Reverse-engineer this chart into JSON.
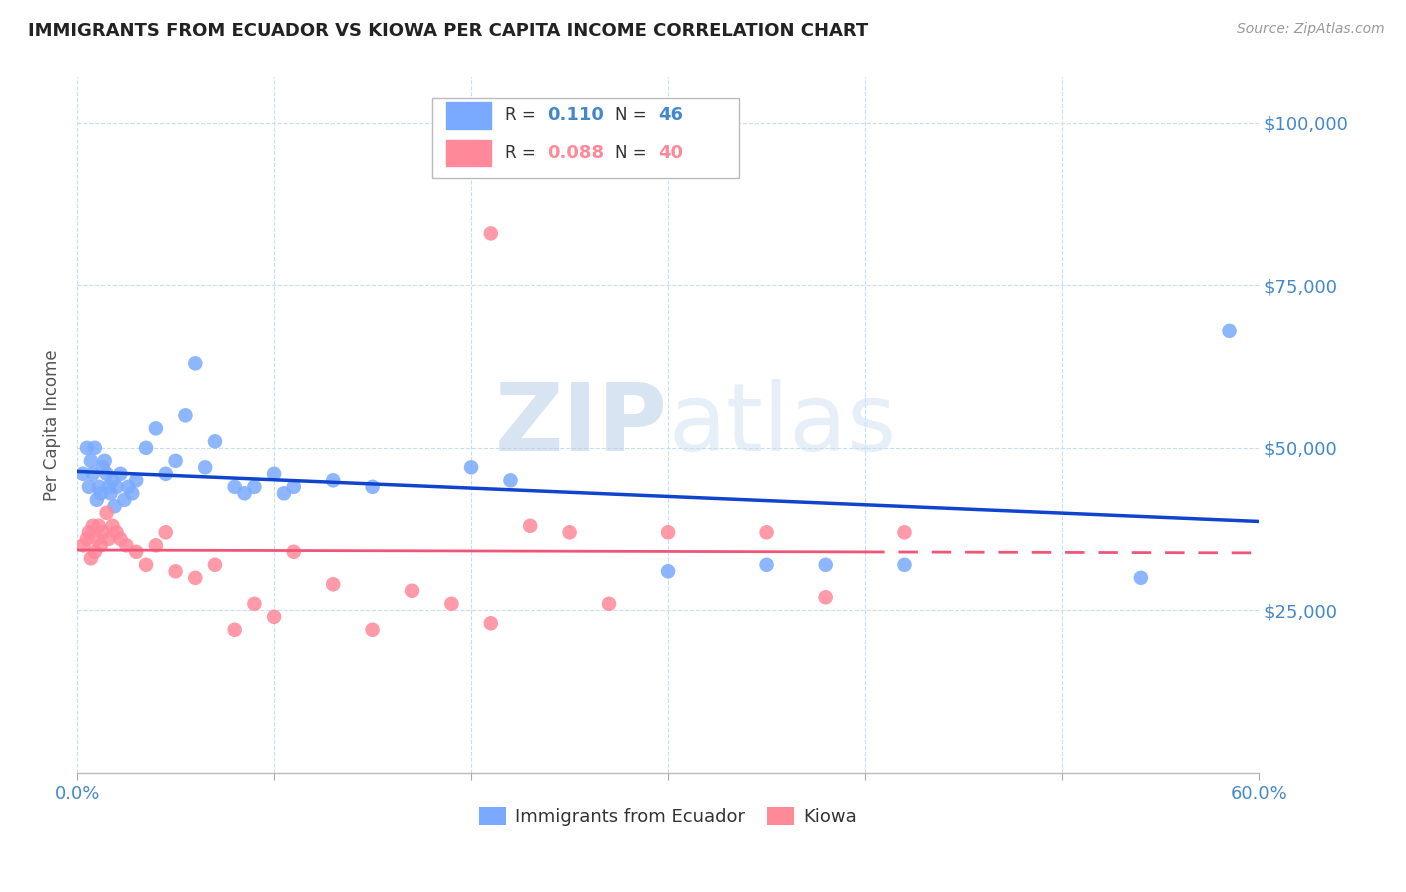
{
  "title": "IMMIGRANTS FROM ECUADOR VS KIOWA PER CAPITA INCOME CORRELATION CHART",
  "source_text": "Source: ZipAtlas.com",
  "ylabel": "Per Capita Income",
  "watermark_zip": "ZIP",
  "watermark_atlas": "atlas",
  "xlim": [
    0.0,
    0.6
  ],
  "ylim": [
    0,
    107000
  ],
  "yticks": [
    0,
    25000,
    50000,
    75000,
    100000
  ],
  "ytick_labels": [
    "",
    "$25,000",
    "$50,000",
    "$75,000",
    "$100,000"
  ],
  "xticks": [
    0.0,
    0.1,
    0.2,
    0.3,
    0.4,
    0.5,
    0.6
  ],
  "xtick_labels": [
    "0.0%",
    "",
    "",
    "",
    "",
    "",
    "60.0%"
  ],
  "blue_R": 0.11,
  "blue_N": 46,
  "pink_R": 0.088,
  "pink_N": 40,
  "legend_label_blue": "Immigrants from Ecuador",
  "legend_label_pink": "Kiowa",
  "blue_color": "#7aaaff",
  "pink_color": "#ff8899",
  "trend_blue": "#1144cc",
  "trend_pink": "#ee5577",
  "axis_label_color": "#4488cc",
  "background_color": "#ffffff",
  "blue_x": [
    0.003,
    0.005,
    0.006,
    0.007,
    0.008,
    0.009,
    0.01,
    0.011,
    0.012,
    0.013,
    0.014,
    0.015,
    0.016,
    0.017,
    0.018,
    0.019,
    0.02,
    0.022,
    0.024,
    0.026,
    0.028,
    0.03,
    0.035,
    0.04,
    0.045,
    0.05,
    0.055,
    0.06,
    0.065,
    0.07,
    0.08,
    0.085,
    0.09,
    0.1,
    0.105,
    0.11,
    0.13,
    0.15,
    0.2,
    0.22,
    0.3,
    0.35,
    0.38,
    0.42,
    0.54,
    0.585
  ],
  "blue_y": [
    46000,
    50000,
    44000,
    48000,
    46000,
    50000,
    42000,
    44000,
    43000,
    47000,
    48000,
    46000,
    44000,
    43000,
    45000,
    41000,
    44000,
    46000,
    42000,
    44000,
    43000,
    45000,
    50000,
    53000,
    46000,
    48000,
    55000,
    63000,
    47000,
    51000,
    44000,
    43000,
    44000,
    46000,
    43000,
    44000,
    45000,
    44000,
    47000,
    45000,
    31000,
    32000,
    32000,
    32000,
    30000,
    68000
  ],
  "pink_x": [
    0.003,
    0.005,
    0.006,
    0.007,
    0.008,
    0.009,
    0.01,
    0.011,
    0.012,
    0.013,
    0.015,
    0.016,
    0.018,
    0.02,
    0.022,
    0.025,
    0.03,
    0.035,
    0.04,
    0.045,
    0.05,
    0.06,
    0.07,
    0.08,
    0.09,
    0.1,
    0.11,
    0.13,
    0.15,
    0.17,
    0.19,
    0.21,
    0.23,
    0.25,
    0.27,
    0.3,
    0.35,
    0.38,
    0.42,
    0.21
  ],
  "pink_y": [
    35000,
    36000,
    37000,
    33000,
    38000,
    34000,
    36000,
    38000,
    35000,
    37000,
    40000,
    36000,
    38000,
    37000,
    36000,
    35000,
    34000,
    32000,
    35000,
    37000,
    31000,
    30000,
    32000,
    22000,
    26000,
    24000,
    34000,
    29000,
    22000,
    28000,
    26000,
    23000,
    38000,
    37000,
    26000,
    37000,
    37000,
    27000,
    37000,
    83000
  ],
  "trend_blue_x0": 0.0,
  "trend_blue_x1": 0.6,
  "trend_pink_solid_x0": 0.0,
  "trend_pink_solid_x1": 0.4,
  "trend_pink_dash_x0": 0.4,
  "trend_pink_dash_x1": 0.6
}
